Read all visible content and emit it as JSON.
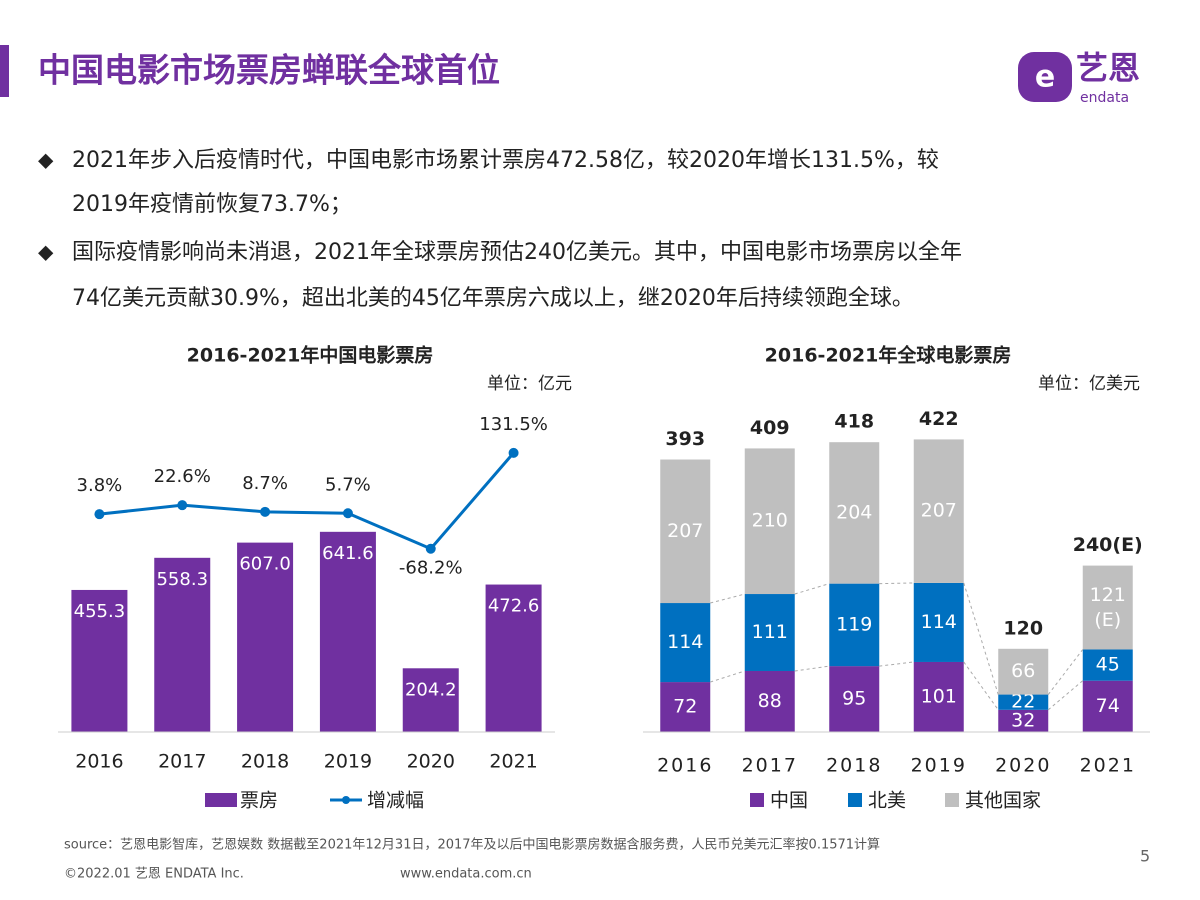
{
  "header": {
    "title": "中国电影市场票房蝉联全球首位",
    "logo": "艺恩",
    "logo_sub": "endata"
  },
  "bullets": [
    [
      "2021年步入后疫情时代，中国电影市场累计票房472.58亿，较2020年增长131.5%，较",
      "2019年疫情前恢复73.7%；"
    ],
    [
      "国际疫情影响尚未消退，2021年全球票房预估240亿美元。其中，中国电影市场票房以全年",
      "74亿美元贡献30.9%，超出北美的45亿年票房六成以上，继2020年后持续领跑全球。"
    ]
  ],
  "chart_data": [
    {
      "type": "bar_line",
      "title": "2016-2021年中国电影票房",
      "unit": "单位：亿元",
      "categories": [
        "2016",
        "2017",
        "2018",
        "2019",
        "2020",
        "2021"
      ],
      "series": [
        {
          "name": "票房",
          "color": "#7030a0",
          "values": [
            455.3,
            558.3,
            607.0,
            641.6,
            204.2,
            472.6
          ],
          "value_labels": [
            "455.3",
            "558.3",
            "607.0",
            "641.6",
            "204.2",
            "472.6"
          ]
        },
        {
          "name": "增减幅",
          "type": "line",
          "axis": "y2",
          "color": "#0070c0",
          "values": [
            3.8,
            22.6,
            8.7,
            5.7,
            -68.2,
            131.5
          ],
          "value_labels": [
            "3.8%",
            "22.6%",
            "8.7%",
            "5.7%",
            "-68.2%",
            "131.5%"
          ]
        }
      ],
      "ylim": [
        0,
        1000
      ],
      "y2lim": [
        -450,
        200
      ]
    },
    {
      "type": "stacked_bar",
      "title": "2016-2021年全球电影票房",
      "unit": "单位：亿美元",
      "categories": [
        "2016",
        "2017",
        "2018",
        "2019",
        "2020",
        "2021"
      ],
      "series": [
        {
          "name": "中国",
          "color": "#7030a0",
          "values": [
            72,
            88,
            95,
            101,
            32,
            74
          ]
        },
        {
          "name": "北美",
          "color": "#0070c0",
          "values": [
            114,
            111,
            119,
            114,
            22,
            45
          ]
        },
        {
          "name": "其他国家",
          "color": "#bfbfbf",
          "values": [
            207,
            210,
            204,
            207,
            66,
            121
          ],
          "value_labels": [
            "207",
            "210",
            "204",
            "207",
            "66",
            "121\n(E)"
          ]
        }
      ],
      "totals": [
        393,
        409,
        418,
        422,
        120,
        240
      ],
      "total_labels": [
        "393",
        "409",
        "418",
        "422",
        "120",
        "240(E)"
      ],
      "ylim": [
        0,
        450
      ]
    }
  ],
  "footer": {
    "source": "source：艺恩电影智库，艺恩娱数    数据截至2021年12月31日，2017年及以后中国电影票房数据含服务费，人民币兑美元汇率按0.1571计算",
    "copyright": "©2022.01 艺恩 ENDATA Inc.",
    "url": "www.endata.com.cn",
    "page": 5
  }
}
